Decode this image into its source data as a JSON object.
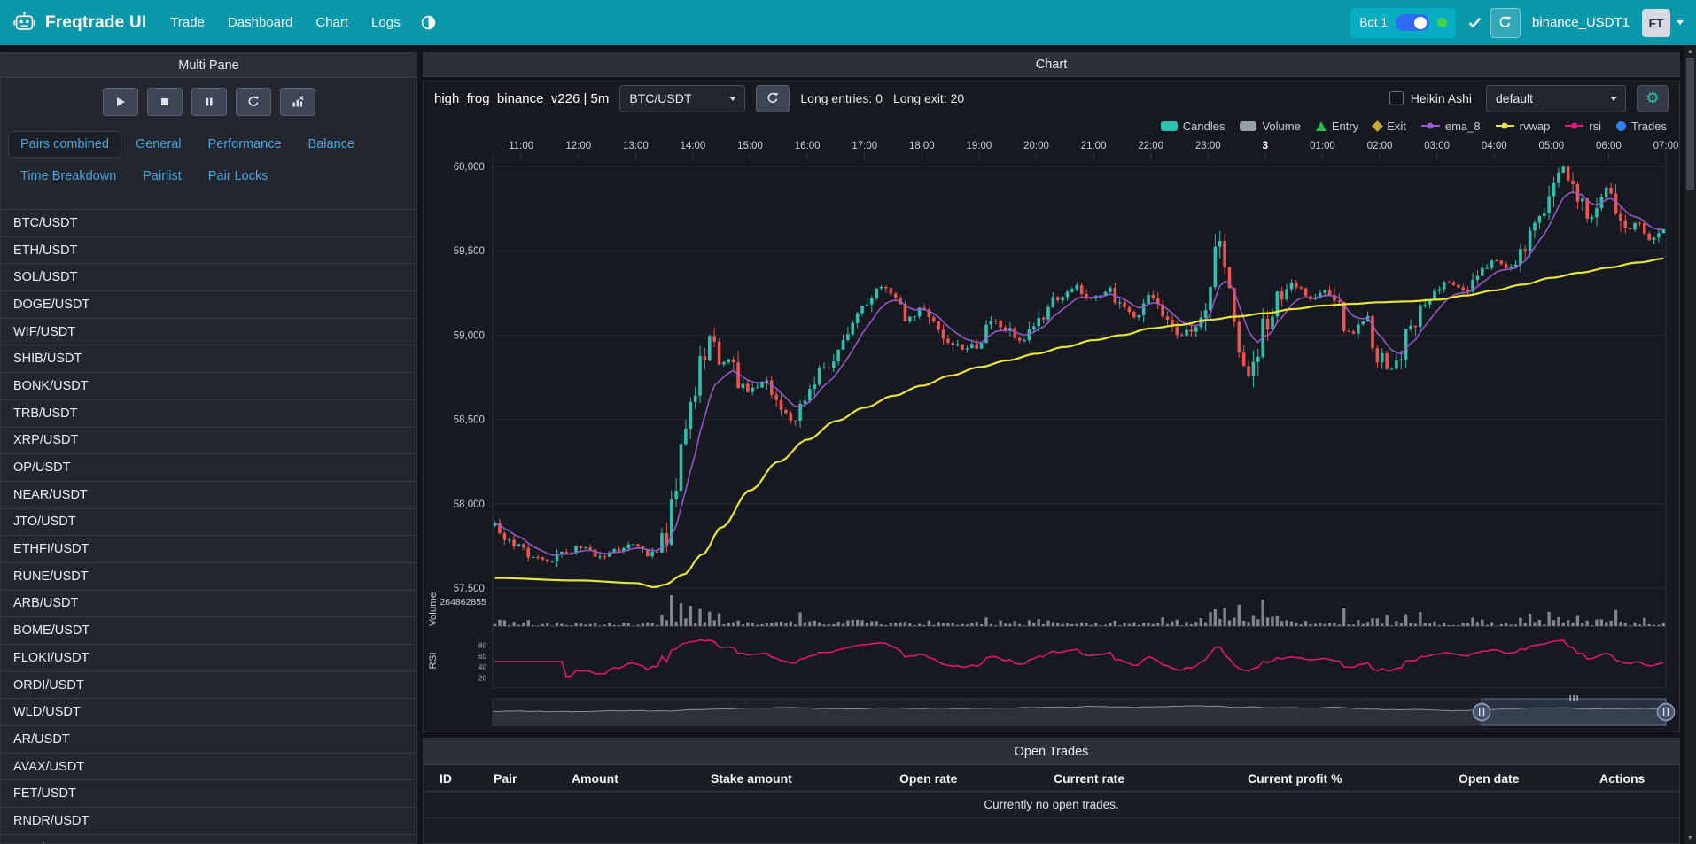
{
  "navbar": {
    "title": "Freqtrade UI",
    "links": [
      "Trade",
      "Dashboard",
      "Chart",
      "Logs"
    ],
    "bot": {
      "name": "Bot 1",
      "online": true
    },
    "exchange_login": "binance_USDT1",
    "avatar": "FT"
  },
  "multi_pane": {
    "title": "Multi Pane",
    "tabs": [
      {
        "label": "Pairs combined",
        "active": true
      },
      {
        "label": "General"
      },
      {
        "label": "Performance"
      },
      {
        "label": "Balance"
      },
      {
        "label": "Time Breakdown"
      },
      {
        "label": "Pairlist"
      },
      {
        "label": "Pair Locks"
      }
    ],
    "pairs": [
      "BTC/USDT",
      "ETH/USDT",
      "SOL/USDT",
      "DOGE/USDT",
      "WIF/USDT",
      "SHIB/USDT",
      "BONK/USDT",
      "TRB/USDT",
      "XRP/USDT",
      "OP/USDT",
      "NEAR/USDT",
      "JTO/USDT",
      "ETHFI/USDT",
      "RUNE/USDT",
      "ARB/USDT",
      "BOME/USDT",
      "FLOKI/USDT",
      "ORDI/USDT",
      "WLD/USDT",
      "AR/USDT",
      "AVAX/USDT",
      "FET/USDT",
      "RNDR/USDT",
      "DOT/USDT"
    ]
  },
  "chart_panel": {
    "title": "Chart",
    "strategy_title": "high_frog_binance_v226 | 5m",
    "pair_select": "BTC/USDT",
    "entries_text": "Long entries: 0",
    "exits_text": "Long exit: 20",
    "heikin_ashi_label": "Heikin Ashi",
    "heikin_ashi_checked": false,
    "plot_config_select": "default",
    "legend": [
      {
        "label": "Candles",
        "shape": "rect",
        "color": "#2fbfae"
      },
      {
        "label": "Volume",
        "shape": "rect",
        "color": "#9aa0a8"
      },
      {
        "label": "Entry",
        "shape": "triangle",
        "color": "#2db84d"
      },
      {
        "label": "Exit",
        "shape": "diamond",
        "color": "#c8a62c"
      },
      {
        "label": "ema_8",
        "shape": "line",
        "color": "#9b59d0"
      },
      {
        "label": "rvwap",
        "shape": "line",
        "color": "#e9e43c"
      },
      {
        "label": "rsi",
        "shape": "line",
        "color": "#ea1777"
      },
      {
        "label": "Trades",
        "shape": "circle",
        "color": "#2d7ff0"
      }
    ]
  },
  "chart_data": {
    "type": "candlestick",
    "pair": "BTC/USDT",
    "timeframe": "5m",
    "candle_count": 246,
    "seed": 20240607,
    "price_range": [
      57500,
      60000
    ],
    "y_ticks": [
      {
        "label": "60,000",
        "v": 60000
      },
      {
        "label": "59,500",
        "v": 59500
      },
      {
        "label": "59,000",
        "v": 59000
      },
      {
        "label": "58,500",
        "v": 58500
      },
      {
        "label": "58,000",
        "v": 58000
      },
      {
        "label": "57,500",
        "v": 57500
      }
    ],
    "x_ticks": [
      {
        "label": "11:00",
        "i": 6
      },
      {
        "label": "12:00",
        "i": 18
      },
      {
        "label": "13:00",
        "i": 30
      },
      {
        "label": "14:00",
        "i": 42
      },
      {
        "label": "15:00",
        "i": 54
      },
      {
        "label": "16:00",
        "i": 66
      },
      {
        "label": "17:00",
        "i": 78
      },
      {
        "label": "18:00",
        "i": 90
      },
      {
        "label": "19:00",
        "i": 102
      },
      {
        "label": "20:00",
        "i": 114
      },
      {
        "label": "21:00",
        "i": 126
      },
      {
        "label": "22:00",
        "i": 138
      },
      {
        "label": "23:00",
        "i": 150
      },
      {
        "label": "3",
        "i": 162,
        "bold": true
      },
      {
        "label": "01:00",
        "i": 174
      },
      {
        "label": "02:00",
        "i": 186
      },
      {
        "label": "03:00",
        "i": 198
      },
      {
        "label": "04:00",
        "i": 210
      },
      {
        "label": "05:00",
        "i": 222
      },
      {
        "label": "06:00",
        "i": 234
      },
      {
        "label": "07:00",
        "i": 246
      }
    ],
    "volume_axis_label": "264862855",
    "volume_axis_name": "Volume",
    "rsi_axis_name": "RSI",
    "rsi_ticks": [
      80,
      60,
      40,
      20
    ],
    "colors": {
      "up": "#2fbfae",
      "down": "#ef5350",
      "volume": "#9aa0a8",
      "ema": "#9b59d0",
      "rvwap": "#e9e43c",
      "rsi": "#ea1777"
    },
    "series": {
      "close_waypoints": [
        [
          0,
          57870
        ],
        [
          3,
          57790
        ],
        [
          8,
          57700
        ],
        [
          12,
          57650
        ],
        [
          15,
          57710
        ],
        [
          18,
          57740
        ],
        [
          22,
          57690
        ],
        [
          26,
          57730
        ],
        [
          30,
          57760
        ],
        [
          33,
          57700
        ],
        [
          36,
          57790
        ],
        [
          38,
          57990
        ],
        [
          40,
          58340
        ],
        [
          42,
          58650
        ],
        [
          44,
          58890
        ],
        [
          46,
          59020
        ],
        [
          48,
          58820
        ],
        [
          50,
          58880
        ],
        [
          52,
          58700
        ],
        [
          54,
          58660
        ],
        [
          57,
          58740
        ],
        [
          60,
          58570
        ],
        [
          63,
          58470
        ],
        [
          66,
          58640
        ],
        [
          70,
          58820
        ],
        [
          74,
          59000
        ],
        [
          78,
          59150
        ],
        [
          81,
          59290
        ],
        [
          84,
          59260
        ],
        [
          87,
          59110
        ],
        [
          90,
          59170
        ],
        [
          93,
          59040
        ],
        [
          96,
          58950
        ],
        [
          99,
          58900
        ],
        [
          102,
          58950
        ],
        [
          105,
          59090
        ],
        [
          108,
          59020
        ],
        [
          111,
          58950
        ],
        [
          114,
          59080
        ],
        [
          118,
          59220
        ],
        [
          122,
          59280
        ],
        [
          126,
          59210
        ],
        [
          129,
          59270
        ],
        [
          132,
          59160
        ],
        [
          135,
          59100
        ],
        [
          138,
          59220
        ],
        [
          141,
          59070
        ],
        [
          144,
          58970
        ],
        [
          147,
          59060
        ],
        [
          150,
          59140
        ],
        [
          151,
          59540
        ],
        [
          152,
          59610
        ],
        [
          153,
          59460
        ],
        [
          154,
          59340
        ],
        [
          155,
          59090
        ],
        [
          156,
          58930
        ],
        [
          157,
          58810
        ],
        [
          158,
          58740
        ],
        [
          160,
          58880
        ],
        [
          162,
          59060
        ],
        [
          165,
          59230
        ],
        [
          168,
          59300
        ],
        [
          171,
          59210
        ],
        [
          174,
          59260
        ],
        [
          177,
          59160
        ],
        [
          180,
          58990
        ],
        [
          183,
          59080
        ],
        [
          186,
          58880
        ],
        [
          188,
          58800
        ],
        [
          190,
          58860
        ],
        [
          192,
          59010
        ],
        [
          195,
          59160
        ],
        [
          198,
          59290
        ],
        [
          201,
          59320
        ],
        [
          204,
          59270
        ],
        [
          207,
          59390
        ],
        [
          210,
          59460
        ],
        [
          213,
          59400
        ],
        [
          216,
          59510
        ],
        [
          219,
          59650
        ],
        [
          222,
          59840
        ],
        [
          224,
          60010
        ],
        [
          226,
          59910
        ],
        [
          228,
          59800
        ],
        [
          230,
          59670
        ],
        [
          232,
          59780
        ],
        [
          234,
          59870
        ],
        [
          236,
          59740
        ],
        [
          238,
          59620
        ],
        [
          240,
          59690
        ],
        [
          242,
          59560
        ],
        [
          244,
          59600
        ],
        [
          245,
          59620
        ]
      ],
      "rvwap_waypoints": [
        [
          0,
          57560
        ],
        [
          18,
          57545
        ],
        [
          30,
          57530
        ],
        [
          34,
          57505
        ],
        [
          36,
          57520
        ],
        [
          40,
          57580
        ],
        [
          44,
          57700
        ],
        [
          48,
          57860
        ],
        [
          54,
          58080
        ],
        [
          60,
          58250
        ],
        [
          66,
          58380
        ],
        [
          72,
          58490
        ],
        [
          78,
          58570
        ],
        [
          84,
          58640
        ],
        [
          90,
          58700
        ],
        [
          96,
          58760
        ],
        [
          102,
          58810
        ],
        [
          108,
          58850
        ],
        [
          114,
          58890
        ],
        [
          120,
          58930
        ],
        [
          126,
          58970
        ],
        [
          132,
          59000
        ],
        [
          138,
          59040
        ],
        [
          144,
          59060
        ],
        [
          150,
          59090
        ],
        [
          156,
          59110
        ],
        [
          162,
          59130
        ],
        [
          168,
          59155
        ],
        [
          174,
          59175
        ],
        [
          180,
          59185
        ],
        [
          186,
          59195
        ],
        [
          192,
          59200
        ],
        [
          198,
          59210
        ],
        [
          204,
          59235
        ],
        [
          210,
          59265
        ],
        [
          216,
          59300
        ],
        [
          222,
          59340
        ],
        [
          228,
          59370
        ],
        [
          234,
          59400
        ],
        [
          240,
          59430
        ],
        [
          246,
          59455
        ]
      ]
    },
    "zoom": {
      "start": 0.843,
      "end": 1.0
    }
  },
  "open_trades": {
    "title": "Open Trades",
    "columns": [
      "ID",
      "Pair",
      "Amount",
      "Stake amount",
      "Open rate",
      "Current rate",
      "Current profit %",
      "Open date",
      "Actions"
    ],
    "empty_message": "Currently no open trades."
  }
}
